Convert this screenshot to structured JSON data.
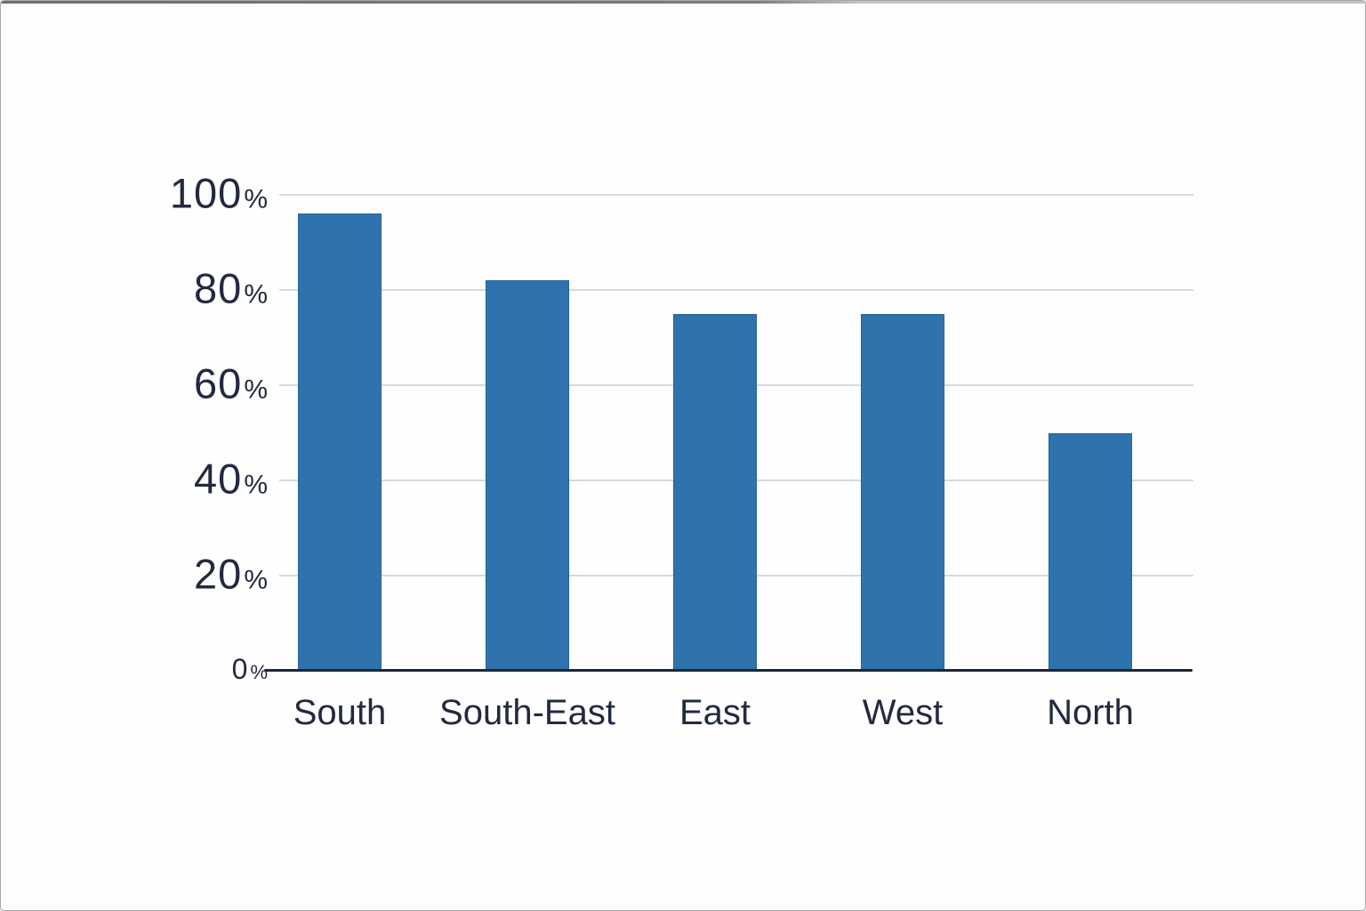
{
  "window": {
    "background": "#fefefe",
    "frame_border_color": "#a8a8a8"
  },
  "chart_data": {
    "type": "bar",
    "categories": [
      "South",
      "South-East",
      "East",
      "West",
      "North"
    ],
    "values": [
      96,
      82,
      75,
      75,
      50
    ],
    "value_unit": "%",
    "title": "",
    "xlabel": "",
    "ylabel": "",
    "ylim": [
      0,
      100
    ],
    "y_ticks": [
      100,
      80,
      60,
      40,
      20,
      0
    ],
    "y_tick_labels": [
      "100%",
      "80%",
      "60%",
      "40%",
      "20%",
      "0%"
    ],
    "grid": "horizontal",
    "legend": "none",
    "bar_color": "#2e73ad",
    "gridline_color": "#d9d9dc",
    "axis_line_color": "#1c2638",
    "label_color": "#222a40"
  }
}
